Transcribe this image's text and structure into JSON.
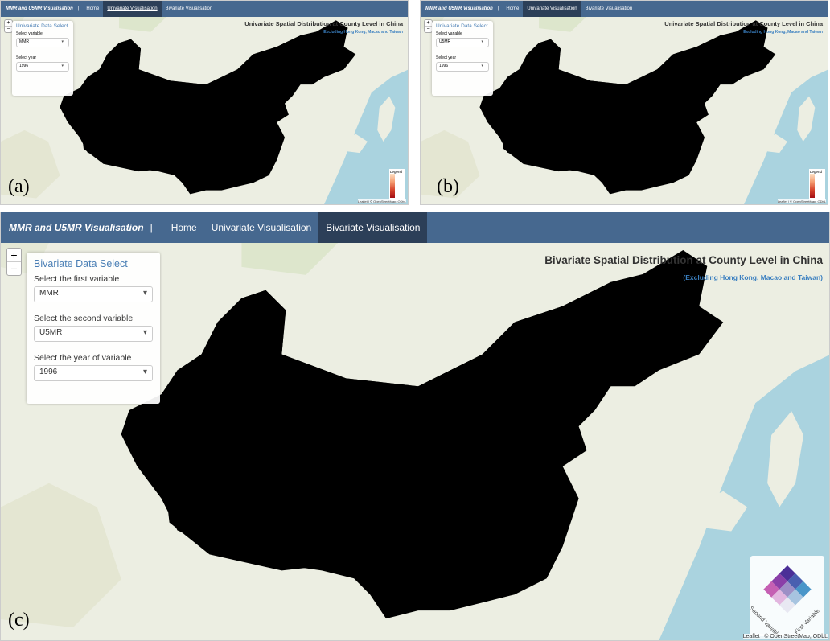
{
  "panels": [
    {
      "label": "(a)",
      "navbar": {
        "brand": "MMR and U5MR Visualisation",
        "links": [
          "Home",
          "Univariate Visualisation",
          "Bivariate Visualisation"
        ]
      },
      "zoom": [
        "+",
        "−"
      ],
      "sidebar": {
        "title": "Univariate Data Select",
        "fields": [
          {
            "label": "Select variable",
            "value": "MMR"
          },
          {
            "label": "Select year",
            "value": "1996"
          }
        ]
      },
      "map": {
        "title": "Univariate Spatial Distribution at County Level in China",
        "subtitle": "Excluding Hong Kong, Macao and Taiwan",
        "legend": "Legend",
        "attribution": "Leaflet | © OpenStreetMap, ODbL"
      }
    },
    {
      "label": "(b)",
      "navbar": {
        "brand": "MMR and U5MR Visualisation",
        "links": [
          "Home",
          "Univariate Visualisation",
          "Bivariate Visualisation"
        ]
      },
      "zoom": [
        "+",
        "−"
      ],
      "sidebar": {
        "title": "Univariate Data Select",
        "fields": [
          {
            "label": "Select variable",
            "value": "U5MR"
          },
          {
            "label": "Select year",
            "value": "1996"
          }
        ]
      },
      "map": {
        "title": "Univariate Spatial Distribution at County Level in China",
        "subtitle": "Excluding Hong Kong, Macao and Taiwan",
        "legend": "Legend",
        "attribution": "Leaflet | © OpenStreetMap, ODbL"
      }
    },
    {
      "label": "(c)",
      "navbar": {
        "brand": "MMR and U5MR Visualisation",
        "links": [
          "Home",
          "Univariate Visualisation",
          "Bivariate Visualisation"
        ]
      },
      "zoom": [
        "+",
        "−"
      ],
      "sidebar": {
        "title": "Bivariate Data Select",
        "fields": [
          {
            "label": "Select the first variable",
            "value": "MMR"
          },
          {
            "label": "Select the second variable",
            "value": "U5MR"
          },
          {
            "label": "Select the year of variable",
            "value": "1996"
          }
        ]
      },
      "map": {
        "title": "Bivariate Spatial Distribution at County Level in China",
        "subtitle": "(Excluding Hong Kong, Macao and Taiwan)",
        "legend_axes": [
          "Second Variable",
          "First Variable"
        ],
        "attribution": "Leaflet | © OpenStreetMap, ODbL"
      }
    }
  ]
}
